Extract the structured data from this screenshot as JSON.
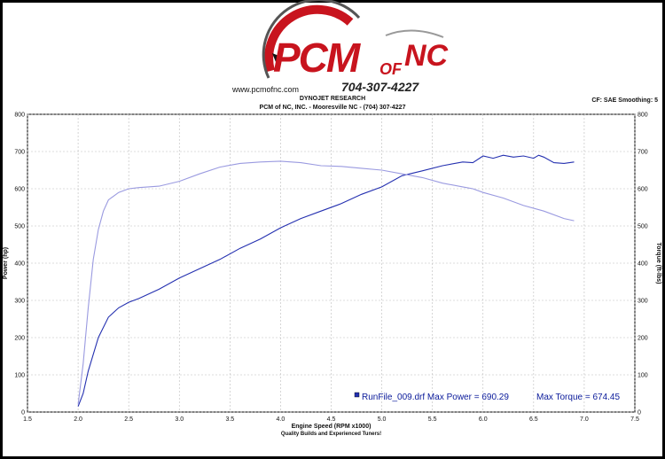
{
  "logo": {
    "brand_main": "PCM",
    "brand_of": "OF",
    "brand_region": "NC",
    "phone": "704-307-4227",
    "website": "www.pcmofnc.com"
  },
  "header": {
    "title": "DYNOJET RESEARCH",
    "subtitle": "PCM of NC, INC. - Mooresville NC - (704) 307-4227",
    "correction": "CF: SAE  Smoothing: 5"
  },
  "chart_data": {
    "type": "line",
    "xlabel": "Engine Speed (RPM x1000)",
    "ylabel_left": "Power (hp)",
    "ylabel_right": "Torque (ft-lbs)",
    "caption": "Quality Builds and Experienced Tuners!",
    "xlim": [
      1.5,
      7.5
    ],
    "ylim": [
      0,
      800
    ],
    "x_ticks": [
      "1.5",
      "2.0",
      "2.5",
      "3.0",
      "3.5",
      "4.0",
      "4.5",
      "5.0",
      "5.5",
      "6.0",
      "6.5",
      "7.0",
      "7.5"
    ],
    "y_ticks": [
      "0",
      "100",
      "200",
      "300",
      "400",
      "500",
      "600",
      "700",
      "800"
    ],
    "grid": true,
    "legend": {
      "text": "RunFile_009.drf Max Power = 690.29",
      "extra": "Max Torque = 674.45",
      "position": "bottom-right"
    },
    "series": [
      {
        "name": "Power",
        "color": "#2430b0",
        "x": [
          2.0,
          2.05,
          2.1,
          2.2,
          2.3,
          2.4,
          2.5,
          2.6,
          2.8,
          3.0,
          3.2,
          3.4,
          3.6,
          3.8,
          4.0,
          4.2,
          4.4,
          4.6,
          4.8,
          5.0,
          5.2,
          5.4,
          5.6,
          5.8,
          5.9,
          6.0,
          6.1,
          6.2,
          6.3,
          6.4,
          6.5,
          6.55,
          6.6,
          6.7,
          6.8,
          6.9
        ],
        "y": [
          15,
          50,
          110,
          200,
          255,
          280,
          295,
          305,
          330,
          360,
          385,
          410,
          440,
          465,
          495,
          520,
          540,
          560,
          585,
          605,
          635,
          648,
          662,
          672,
          670,
          688,
          682,
          690,
          685,
          688,
          682,
          690,
          685,
          670,
          668,
          672
        ]
      },
      {
        "name": "Torque",
        "color": "#9a9ae0",
        "x": [
          2.0,
          2.05,
          2.1,
          2.15,
          2.2,
          2.25,
          2.3,
          2.4,
          2.5,
          2.6,
          2.8,
          3.0,
          3.2,
          3.4,
          3.6,
          3.8,
          4.0,
          4.2,
          4.4,
          4.6,
          4.8,
          5.0,
          5.2,
          5.4,
          5.6,
          5.8,
          5.9,
          6.0,
          6.2,
          6.4,
          6.6,
          6.8,
          6.9
        ],
        "y": [
          20,
          130,
          280,
          410,
          490,
          540,
          570,
          590,
          600,
          603,
          607,
          620,
          640,
          658,
          668,
          672,
          674,
          670,
          662,
          660,
          655,
          650,
          640,
          630,
          615,
          605,
          600,
          590,
          575,
          555,
          540,
          520,
          514
        ]
      }
    ]
  }
}
